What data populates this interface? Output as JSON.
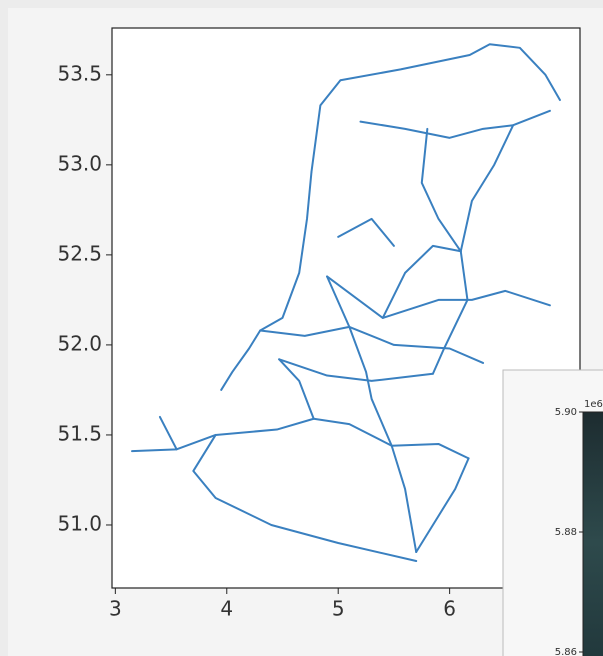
{
  "chart_data": [
    {
      "type": "line",
      "color": "#3a80c0",
      "xlim": [
        2.97,
        7.17
      ],
      "ylim": [
        50.65,
        53.76
      ],
      "xticks": [
        3,
        4,
        5,
        6
      ],
      "yticks": [
        {
          "value": 51,
          "label": "51.0"
        },
        51.5,
        {
          "value": 52,
          "label": "52.0"
        },
        52.5,
        {
          "value": 53,
          "label": "53.0"
        },
        53.5
      ],
      "series": [
        {
          "x": [
            4.76,
            4.84,
            5.02,
            5.56,
            6.18,
            6.36,
            6.63,
            6.86,
            6.99
          ],
          "values": [
            52.96,
            53.33,
            53.47,
            53.53,
            53.61,
            53.67,
            53.65,
            53.5,
            53.36
          ]
        },
        {
          "x": [
            5.2,
            5.6,
            6.0,
            6.3,
            6.57,
            6.9
          ],
          "values": [
            53.24,
            53.2,
            53.15,
            53.2,
            53.22,
            53.3
          ]
        },
        {
          "x": [
            6.57,
            6.4,
            6.2,
            6.1
          ],
          "values": [
            53.22,
            53.0,
            52.8,
            52.52
          ]
        },
        {
          "x": [
            5.8,
            5.75,
            5.9,
            6.1
          ],
          "values": [
            53.2,
            52.9,
            52.7,
            52.52
          ]
        },
        {
          "x": [
            4.76,
            4.72,
            4.65,
            4.5,
            4.3,
            4.2,
            4.05,
            3.95
          ],
          "values": [
            52.96,
            52.7,
            52.4,
            52.15,
            52.08,
            51.98,
            51.85,
            51.75
          ]
        },
        {
          "x": [
            4.9,
            5.1,
            5.5,
            6.0,
            6.3
          ],
          "values": [
            52.38,
            52.1,
            52.0,
            51.98,
            51.9
          ]
        },
        {
          "x": [
            4.9,
            5.4,
            5.9,
            6.2,
            6.5,
            6.9
          ],
          "values": [
            52.38,
            52.15,
            52.25,
            52.25,
            52.3,
            52.22
          ]
        },
        {
          "x": [
            6.1,
            6.16,
            5.95,
            5.85
          ],
          "values": [
            52.52,
            52.25,
            51.98,
            51.84
          ]
        },
        {
          "x": [
            4.47,
            4.65,
            4.78,
            5.1,
            5.48,
            5.9,
            6.17
          ],
          "values": [
            51.92,
            51.8,
            51.59,
            51.56,
            51.44,
            51.45,
            51.37
          ]
        },
        {
          "x": [
            6.17,
            6.05,
            5.9,
            5.7
          ],
          "values": [
            51.37,
            51.2,
            51.05,
            50.85
          ]
        },
        {
          "x": [
            5.48,
            5.6,
            5.7
          ],
          "values": [
            51.44,
            51.2,
            50.85
          ]
        },
        {
          "x": [
            3.15,
            3.55,
            3.9,
            4.45,
            4.78
          ],
          "values": [
            51.41,
            51.42,
            51.5,
            51.53,
            51.59
          ]
        },
        {
          "x": [
            3.9,
            3.7,
            3.9,
            4.4,
            5.0,
            5.7
          ],
          "values": [
            51.5,
            51.3,
            51.15,
            51.0,
            50.9,
            50.8
          ]
        },
        {
          "x": [
            4.3,
            4.7,
            5.1
          ],
          "values": [
            52.08,
            52.05,
            52.1
          ]
        },
        {
          "x": [
            4.47,
            4.9,
            5.3,
            5.85
          ],
          "values": [
            51.92,
            51.83,
            51.8,
            51.84
          ]
        },
        {
          "x": [
            5.4,
            5.6,
            5.85,
            6.1
          ],
          "values": [
            52.15,
            52.4,
            52.55,
            52.52
          ]
        },
        {
          "x": [
            5.0,
            5.3,
            5.5
          ],
          "values": [
            52.6,
            52.7,
            52.55
          ]
        },
        {
          "x": [
            5.1,
            5.25,
            5.3,
            5.48
          ],
          "values": [
            52.1,
            51.85,
            51.7,
            51.44
          ]
        },
        {
          "x": [
            3.55,
            3.4
          ],
          "values": [
            51.42,
            51.6
          ]
        }
      ]
    },
    {
      "type": "image",
      "offset_text": "1e6",
      "ylim": [
        5.855,
        5.9
      ],
      "yticks": [
        {
          "value": 5.9,
          "label": "5.90"
        },
        {
          "value": 5.88,
          "label": "5.88"
        },
        {
          "value": 5.86,
          "label": "5.86"
        }
      ]
    }
  ]
}
